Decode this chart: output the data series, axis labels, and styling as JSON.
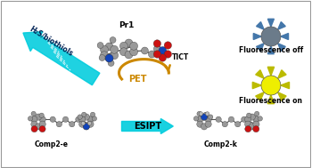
{
  "bg_color": "#ffffff",
  "pr1_label": "Pr1",
  "tict_label": "TICT",
  "pet_label": "PET",
  "h2s_label": "H₂S/biothiols",
  "esipt_label": "ESIPT",
  "comp2e_label": "Comp2-e",
  "comp2k_label": "Comp2-k",
  "fluor_off_label": "Fluorescence off",
  "fluor_on_label": "Fluorescence on",
  "arrow_cyan": "#00ccdd",
  "arrow_orange": "#cc8800",
  "sun_off_center": "#6b7b8a",
  "sun_off_ray": "#4477aa",
  "sun_on_center": "#eeee00",
  "sun_on_ray": "#bbbb00",
  "atom_gray": "#999999",
  "atom_gray_light": "#bbbbbb",
  "atom_blue": "#1144bb",
  "atom_red": "#cc1111",
  "atom_dark": "#666666",
  "bond_color": "#555555"
}
